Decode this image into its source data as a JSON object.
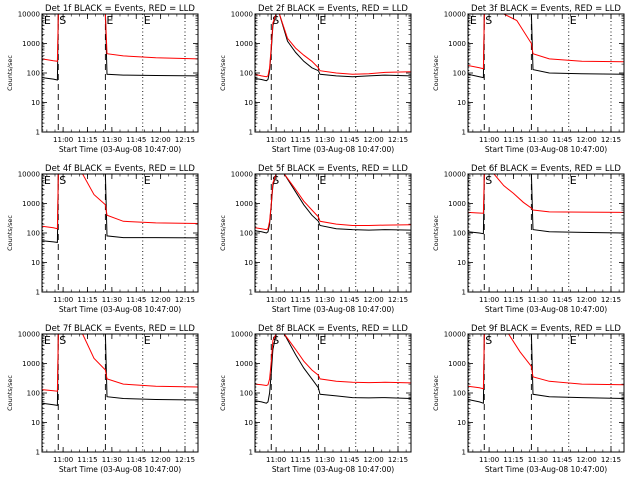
{
  "chart_data": {
    "type": "line",
    "grid_rows": 3,
    "grid_cols": 3,
    "shared": {
      "ylabel": "Counts/sec",
      "xlabel": "Start Time (03-Aug-08 10:47:00)",
      "yscale": "log",
      "ylim": [
        1,
        10000
      ],
      "y_ticks": [
        "1",
        "10",
        "100",
        "1000",
        "10000"
      ],
      "x_ticks": [
        "11:00",
        "11:15",
        "11:30",
        "11:45",
        "12:00",
        "12:15"
      ],
      "x_tick_minutes": [
        13,
        28,
        43,
        58,
        73,
        88
      ],
      "xlim_minutes": [
        0,
        96
      ],
      "series_colors": {
        "Events": "#000000",
        "LLD": "#ff0000"
      }
    },
    "panels": [
      {
        "title": "Det 1f BLACK = Events, RED = LLD",
        "markers": [
          {
            "label": "E",
            "x": 0.5,
            "style": "dotted"
          },
          {
            "label": "S",
            "x": 10,
            "style": "dashed"
          },
          {
            "label": "E",
            "x": 39,
            "style": "dashed"
          },
          {
            "label": "E",
            "x": 62,
            "style": "dotted"
          },
          {
            "label": "",
            "x": 88,
            "style": "dotted"
          }
        ],
        "series": [
          {
            "name": "Events",
            "x": [
              0,
              7,
              9.5,
              10,
              39,
              40,
              50,
              70,
              96
            ],
            "y": [
              70,
              62,
              58,
              10000,
              10000,
              90,
              85,
              82,
              80
            ]
          },
          {
            "name": "LLD",
            "x": [
              0,
              7,
              9.5,
              10,
              39,
              40,
              50,
              70,
              96
            ],
            "y": [
              300,
              260,
              250,
              10000,
              10000,
              450,
              380,
              330,
              300
            ]
          }
        ]
      },
      {
        "title": "Det 2f BLACK = Events, RED = LLD",
        "markers": [
          {
            "label": "",
            "x": 0.5,
            "style": "dotted"
          },
          {
            "label": "S",
            "x": 10,
            "style": "dashed"
          },
          {
            "label": "E",
            "x": 39,
            "style": "dashed"
          },
          {
            "label": "",
            "x": 62,
            "style": "dotted"
          },
          {
            "label": "",
            "x": 88,
            "style": "dotted"
          }
        ],
        "series": [
          {
            "name": "Events",
            "x": [
              0,
              4,
              7,
              8,
              9,
              10,
              11,
              13,
              15,
              20,
              25,
              30,
              35,
              39,
              40,
              50,
              60,
              70,
              80,
              96
            ],
            "y": [
              65,
              60,
              55,
              60,
              120,
              600,
              4000,
              10000,
              10000,
              1200,
              500,
              250,
              150,
              120,
              90,
              80,
              75,
              80,
              85,
              80
            ]
          },
          {
            "name": "LLD",
            "x": [
              0,
              4,
              7,
              8,
              9,
              10,
              11,
              13,
              15,
              20,
              25,
              30,
              35,
              39,
              40,
              50,
              60,
              70,
              80,
              96
            ],
            "y": [
              90,
              80,
              75,
              80,
              150,
              800,
              5000,
              10000,
              10000,
              1500,
              700,
              400,
              250,
              150,
              120,
              100,
              90,
              95,
              105,
              110
            ]
          }
        ]
      },
      {
        "title": "Det 3f BLACK = Events, RED = LLD",
        "markers": [
          {
            "label": "E",
            "x": 0.5,
            "style": "dotted"
          },
          {
            "label": "S",
            "x": 10,
            "style": "dashed"
          },
          {
            "label": "",
            "x": 39,
            "style": "dashed"
          },
          {
            "label": "E",
            "x": 62,
            "style": "dotted"
          },
          {
            "label": "",
            "x": 88,
            "style": "dotted"
          }
        ],
        "series": [
          {
            "name": "Events",
            "x": [
              0,
              7,
              9.5,
              10,
              39,
              40,
              50,
              70,
              96
            ],
            "y": [
              90,
              75,
              70,
              10000,
              10000,
              130,
              100,
              95,
              90
            ]
          },
          {
            "name": "LLD",
            "x": [
              0,
              7,
              9.5,
              10,
              22,
              30,
              39,
              40,
              50,
              70,
              96
            ],
            "y": [
              180,
              150,
              140,
              10000,
              10000,
              6000,
              1000,
              450,
              300,
              250,
              240
            ]
          }
        ]
      },
      {
        "title": "Det 4f BLACK = Events, RED = LLD",
        "markers": [
          {
            "label": "E",
            "x": 0.5,
            "style": "dotted"
          },
          {
            "label": "S",
            "x": 10,
            "style": "dashed"
          },
          {
            "label": "",
            "x": 39,
            "style": "dashed"
          },
          {
            "label": "E",
            "x": 62,
            "style": "dotted"
          },
          {
            "label": "",
            "x": 88,
            "style": "dotted"
          }
        ],
        "series": [
          {
            "name": "Events",
            "x": [
              0,
              7,
              9.5,
              10,
              39,
              40,
              50,
              70,
              96
            ],
            "y": [
              55,
              50,
              48,
              10000,
              10000,
              80,
              70,
              70,
              68
            ]
          },
          {
            "name": "LLD",
            "x": [
              0,
              7,
              9.5,
              10,
              25,
              32,
              39,
              40,
              50,
              70,
              96
            ],
            "y": [
              170,
              150,
              140,
              10000,
              10000,
              2000,
              900,
              400,
              250,
              220,
              210
            ]
          }
        ]
      },
      {
        "title": "Det 5f BLACK = Events, RED = LLD",
        "markers": [
          {
            "label": "",
            "x": 0.5,
            "style": "dotted"
          },
          {
            "label": "S",
            "x": 10,
            "style": "dashed"
          },
          {
            "label": "E",
            "x": 39,
            "style": "dashed"
          },
          {
            "label": "",
            "x": 62,
            "style": "dotted"
          },
          {
            "label": "",
            "x": 88,
            "style": "dotted"
          }
        ],
        "series": [
          {
            "name": "Events",
            "x": [
              0,
              4,
              7,
              8,
              9,
              10,
              11,
              13,
              18,
              25,
              30,
              35,
              39,
              40,
              50,
              60,
              70,
              80,
              96
            ],
            "y": [
              120,
              110,
              100,
              110,
              200,
              900,
              4000,
              10000,
              10000,
              2500,
              900,
              400,
              250,
              180,
              140,
              130,
              125,
              130,
              125
            ]
          },
          {
            "name": "LLD",
            "x": [
              0,
              4,
              7,
              8,
              9,
              10,
              11,
              13,
              18,
              25,
              30,
              35,
              39,
              40,
              50,
              60,
              70,
              80,
              96
            ],
            "y": [
              150,
              140,
              130,
              140,
              250,
              1000,
              5000,
              10000,
              10000,
              3000,
              1200,
              600,
              350,
              250,
              200,
              180,
              180,
              185,
              190
            ]
          }
        ]
      },
      {
        "title": "Det 6f BLACK = Events, RED = LLD",
        "markers": [
          {
            "label": "",
            "x": 0.5,
            "style": "dotted"
          },
          {
            "label": "S",
            "x": 10,
            "style": "dashed"
          },
          {
            "label": "",
            "x": 39,
            "style": "dashed"
          },
          {
            "label": "E",
            "x": 62,
            "style": "dotted"
          },
          {
            "label": "",
            "x": 88,
            "style": "dotted"
          }
        ],
        "series": [
          {
            "name": "Events",
            "x": [
              0,
              7,
              9.5,
              10,
              39,
              40,
              50,
              70,
              96
            ],
            "y": [
              110,
              100,
              95,
              10000,
              10000,
              130,
              110,
              105,
              100
            ]
          },
          {
            "name": "LLD",
            "x": [
              0,
              5,
              9.5,
              10,
              16,
              22,
              28,
              34,
              39,
              40,
              50,
              70,
              96
            ],
            "y": [
              500,
              480,
              470,
              10000,
              10000,
              4000,
              2200,
              1100,
              700,
              600,
              520,
              510,
              500
            ]
          }
        ]
      },
      {
        "title": "Det 7f BLACK = Events, RED = LLD",
        "markers": [
          {
            "label": "E",
            "x": 0.5,
            "style": "dotted"
          },
          {
            "label": "S",
            "x": 10,
            "style": "dashed"
          },
          {
            "label": "",
            "x": 39,
            "style": "dashed"
          },
          {
            "label": "E",
            "x": 62,
            "style": "dotted"
          },
          {
            "label": "",
            "x": 88,
            "style": "dotted"
          }
        ],
        "series": [
          {
            "name": "Events",
            "x": [
              0,
              7,
              9.5,
              10,
              39,
              40,
              50,
              70,
              96
            ],
            "y": [
              45,
              40,
              38,
              10000,
              10000,
              75,
              65,
              60,
              58
            ]
          },
          {
            "name": "LLD",
            "x": [
              0,
              7,
              9.5,
              10,
              25,
              32,
              39,
              40,
              50,
              70,
              96
            ],
            "y": [
              130,
              120,
              115,
              10000,
              10000,
              1500,
              600,
              300,
              200,
              170,
              160
            ]
          }
        ]
      },
      {
        "title": "Det 8f BLACK = Events, RED = LLD",
        "markers": [
          {
            "label": "",
            "x": 0.5,
            "style": "dotted"
          },
          {
            "label": "S",
            "x": 10,
            "style": "dashed"
          },
          {
            "label": "E",
            "x": 39,
            "style": "dashed"
          },
          {
            "label": "",
            "x": 62,
            "style": "dotted"
          },
          {
            "label": "",
            "x": 88,
            "style": "dotted"
          }
        ],
        "series": [
          {
            "name": "Events",
            "x": [
              0,
              4,
              7,
              8,
              9,
              10,
              11,
              13,
              18,
              25,
              30,
              35,
              39,
              40,
              50,
              60,
              70,
              80,
              96
            ],
            "y": [
              55,
              50,
              45,
              50,
              100,
              500,
              3000,
              10000,
              10000,
              2000,
              700,
              300,
              150,
              90,
              80,
              70,
              68,
              70,
              65
            ]
          },
          {
            "name": "LLD",
            "x": [
              0,
              4,
              7,
              8,
              9,
              10,
              11,
              13,
              18,
              25,
              30,
              35,
              39,
              40,
              50,
              60,
              70,
              80,
              96
            ],
            "y": [
              200,
              190,
              180,
              190,
              300,
              1200,
              6000,
              10000,
              10000,
              3000,
              1200,
              600,
              400,
              300,
              250,
              230,
              225,
              230,
              220
            ]
          }
        ]
      },
      {
        "title": "Det 9f BLACK = Events, RED = LLD",
        "markers": [
          {
            "label": "",
            "x": 0.5,
            "style": "dotted"
          },
          {
            "label": "S",
            "x": 10,
            "style": "dashed"
          },
          {
            "label": "",
            "x": 39,
            "style": "dashed"
          },
          {
            "label": "E",
            "x": 62,
            "style": "dotted"
          },
          {
            "label": "",
            "x": 88,
            "style": "dotted"
          }
        ],
        "series": [
          {
            "name": "Events",
            "x": [
              0,
              7,
              9.5,
              10,
              39,
              40,
              50,
              70,
              96
            ],
            "y": [
              60,
              50,
              45,
              10000,
              10000,
              90,
              75,
              70,
              65
            ]
          },
          {
            "name": "LLD",
            "x": [
              0,
              7,
              9.5,
              10,
              25,
              32,
              39,
              40,
              50,
              70,
              96
            ],
            "y": [
              170,
              150,
              140,
              10000,
              10000,
              2500,
              800,
              350,
              250,
              200,
              190
            ]
          }
        ]
      }
    ]
  }
}
